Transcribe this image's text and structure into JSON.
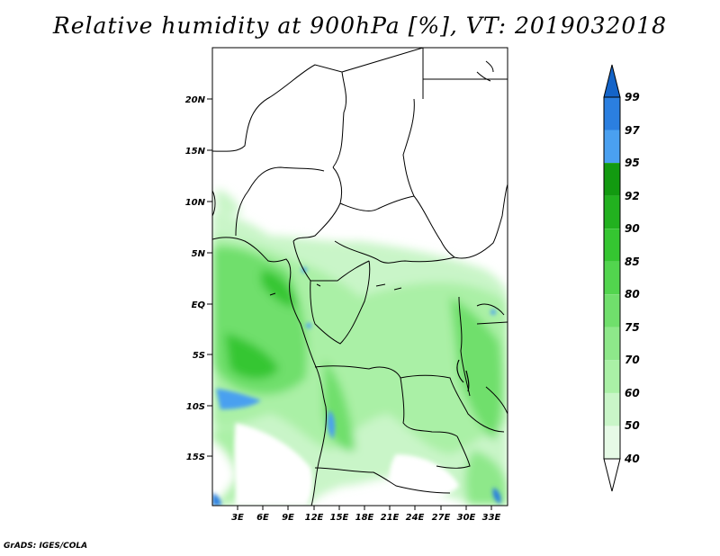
{
  "title": "Relative humidity at 900hPa [%], VT: 2019032018",
  "credit": "GrADS: IGES/COLA",
  "map": {
    "lat_labels": [
      "20N",
      "15N",
      "10N",
      "5N",
      "EQ",
      "5S",
      "10S",
      "15S"
    ],
    "lon_labels": [
      "3E",
      "6E",
      "9E",
      "12E",
      "15E",
      "18E",
      "21E",
      "24E",
      "27E",
      "30E",
      "33E"
    ]
  },
  "colorbar": {
    "levels": [
      "40",
      "50",
      "60",
      "70",
      "75",
      "80",
      "85",
      "90",
      "92",
      "95",
      "97",
      "99"
    ],
    "colors": [
      "#ffffff",
      "#e6fae6",
      "#c9f5c8",
      "#aaf0a6",
      "#8ee88a",
      "#70df6c",
      "#52d54e",
      "#35c631",
      "#22b11f",
      "#129a10",
      "#4aa0f0",
      "#2b7fe0",
      "#1464c8"
    ]
  }
}
